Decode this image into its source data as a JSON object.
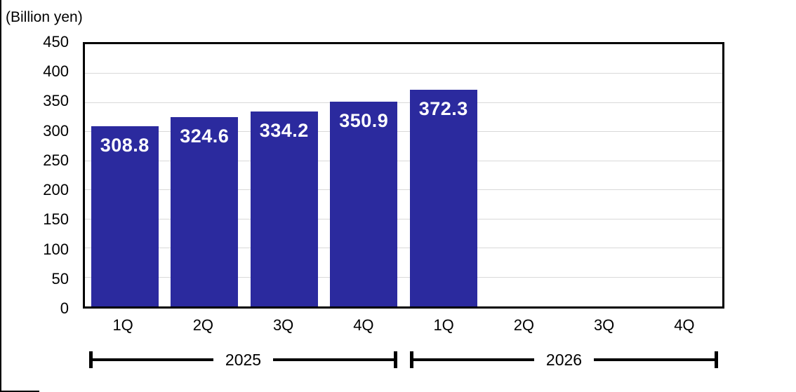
{
  "chart_data": {
    "type": "bar",
    "unit_label": "(Billion yen)",
    "categories": [
      "1Q",
      "2Q",
      "3Q",
      "4Q",
      "1Q",
      "2Q",
      "3Q",
      "4Q"
    ],
    "values": [
      308.8,
      324.6,
      334.2,
      350.9,
      372.3,
      null,
      null,
      null
    ],
    "data_labels": [
      "308.8",
      "324.6",
      "334.2",
      "350.9",
      "372.3",
      null,
      null,
      null
    ],
    "year_groups": [
      {
        "label": "2025",
        "start_index": 0,
        "end_index": 3
      },
      {
        "label": "2026",
        "start_index": 4,
        "end_index": 7
      }
    ],
    "ylim": [
      0,
      450
    ],
    "yticks": [
      0,
      50,
      100,
      150,
      200,
      250,
      300,
      350,
      400,
      450
    ],
    "grid": true,
    "legend_position": "none",
    "colors": {
      "bar": "#2B2A9E",
      "bar_value_text": "#FFFFFF",
      "gridline": "#D9D9D9",
      "axis_border": "#000000",
      "text": "#000000"
    }
  }
}
